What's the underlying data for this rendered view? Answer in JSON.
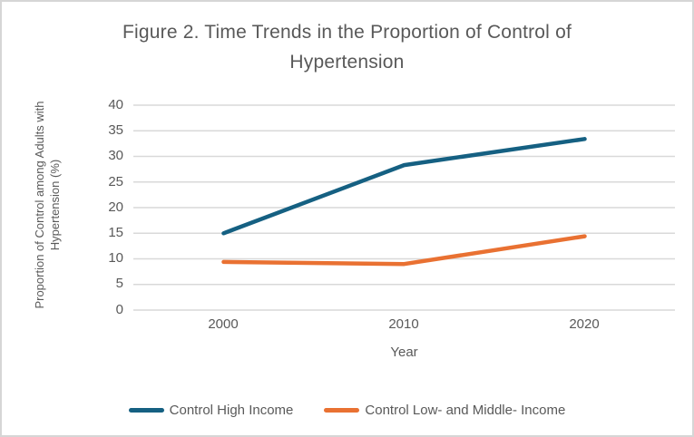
{
  "chart_data": {
    "type": "line",
    "title": "Figure 2. Time Trends in the Proportion of Control of Hypertension",
    "x": [
      "2000",
      "2010",
      "2020"
    ],
    "xlabel": "Year",
    "ylabel": "Proportion of Control among Adults with Hypertension (%)",
    "ylim": [
      0,
      40
    ],
    "ytick_step": 5,
    "yticks": [
      "40",
      "35",
      "30",
      "25",
      "20",
      "15",
      "10",
      "5",
      "0"
    ],
    "grid": true,
    "legend_position": "bottom",
    "series": [
      {
        "name": "Control High Income",
        "color": "#156082",
        "values": [
          15,
          28.3,
          33.4
        ]
      },
      {
        "name": "Control Low- and Middle- Income",
        "color": "#E97132",
        "values": [
          9.4,
          9.0,
          14.4
        ]
      }
    ],
    "style": {
      "grid_color": "#D9D9D9",
      "text_color": "#595959",
      "border_color": "#D6D6D6",
      "background": "#FFFFFF"
    }
  }
}
